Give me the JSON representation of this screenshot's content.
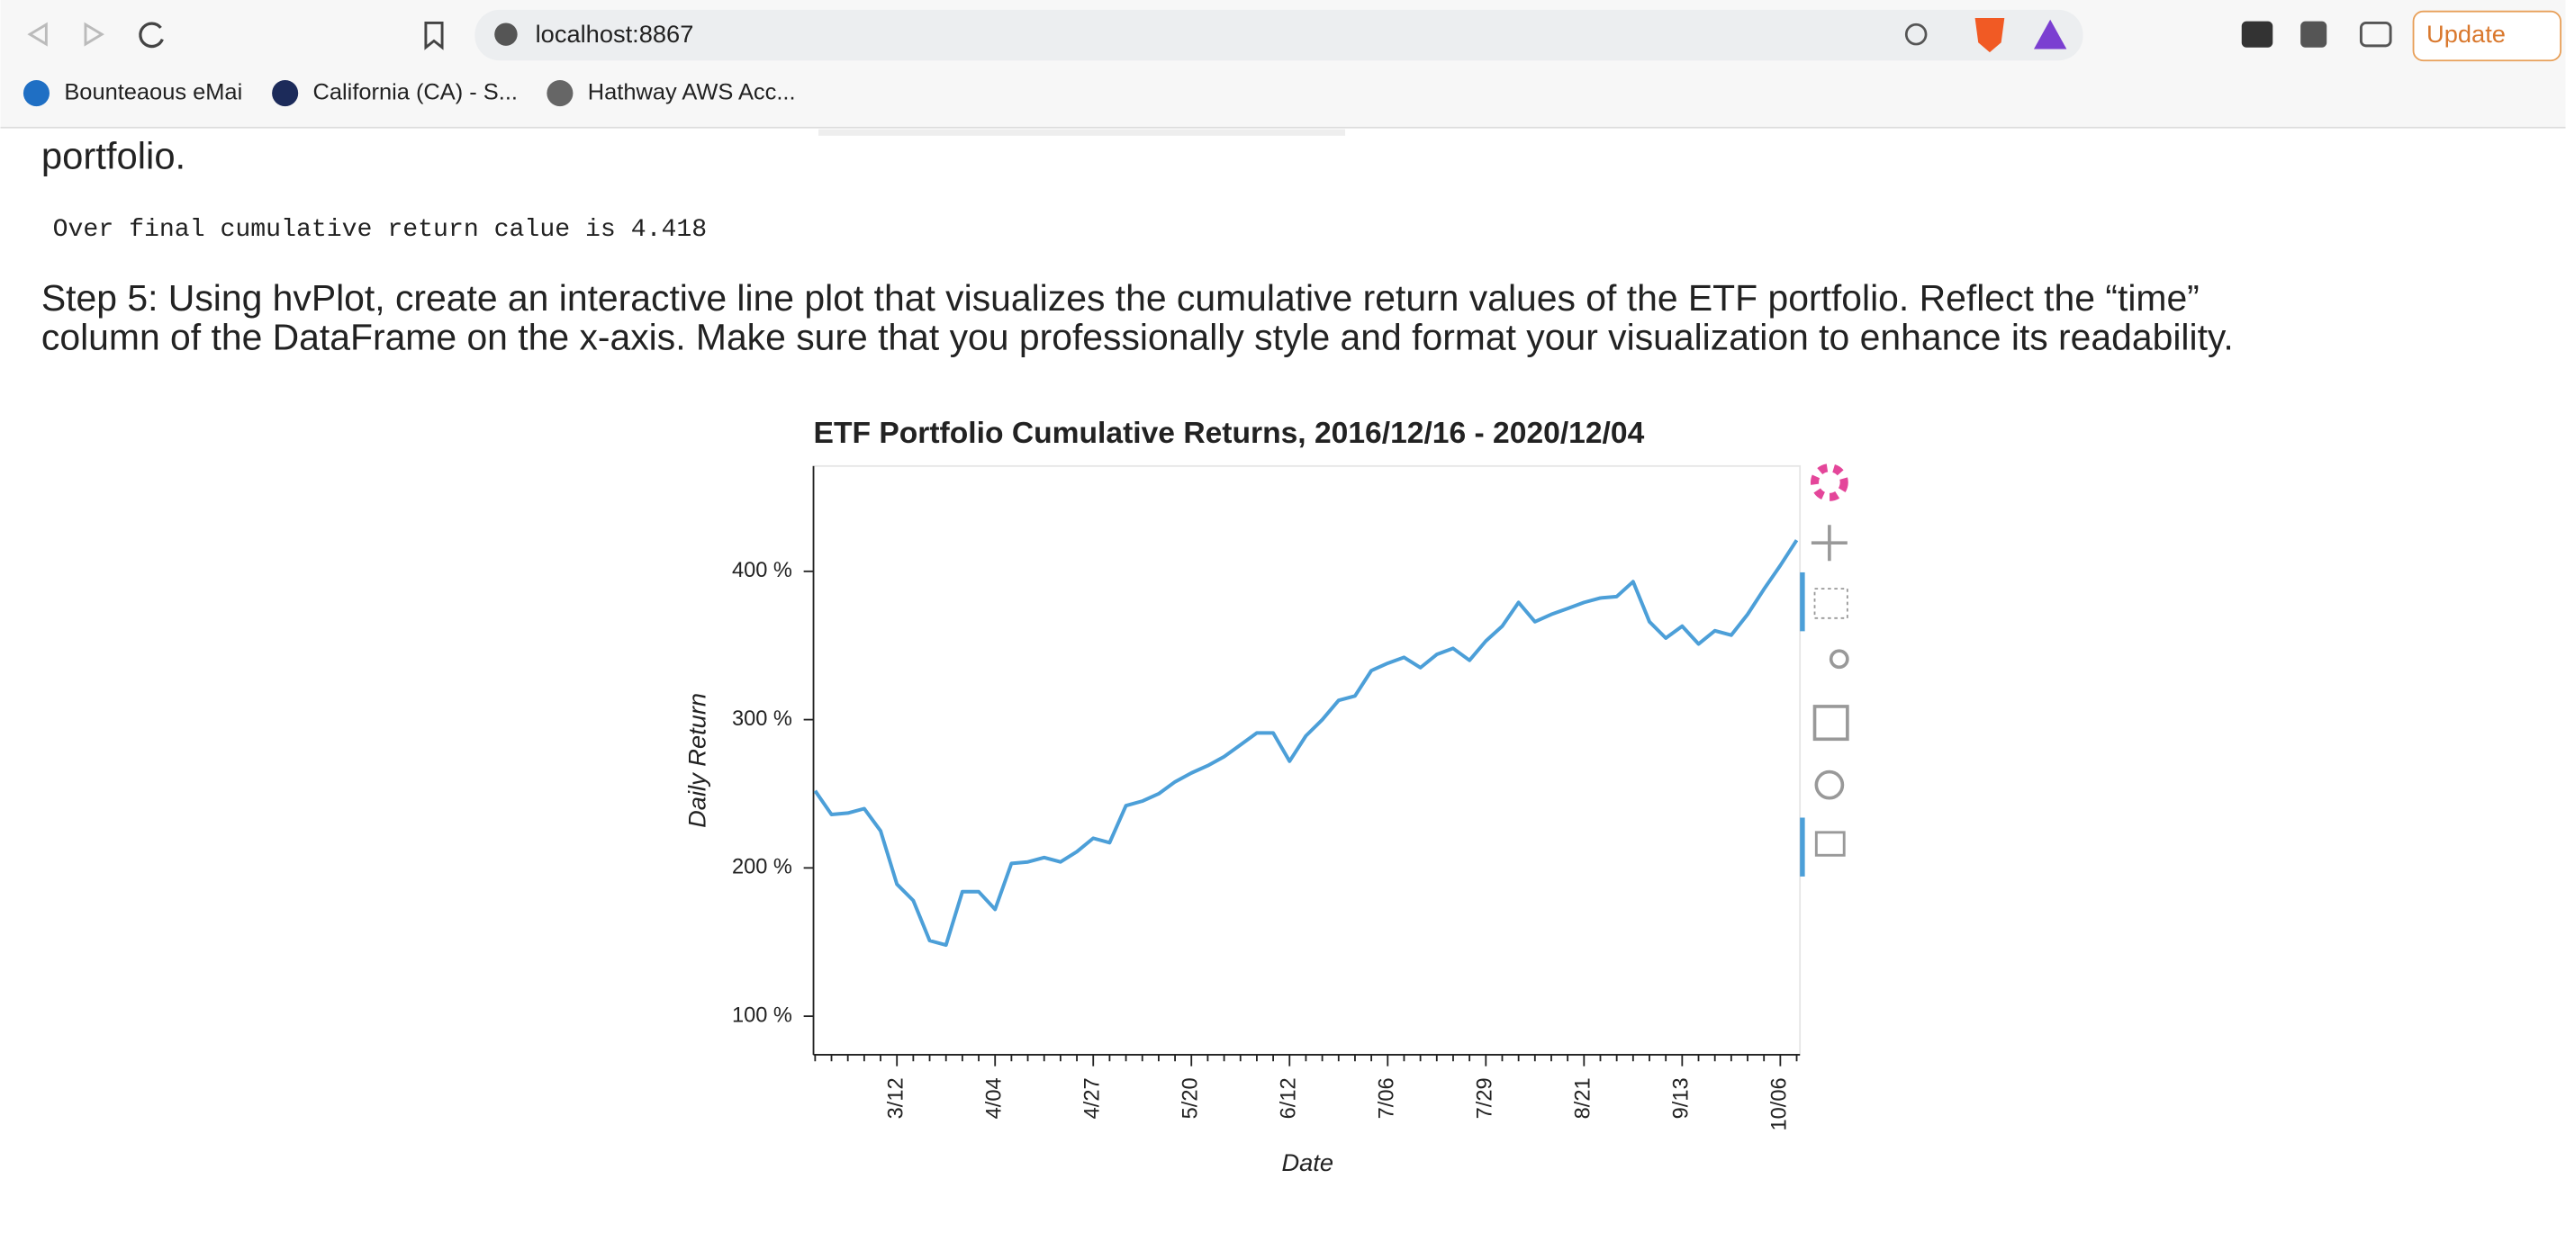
{
  "browser": {
    "url": "localhost:8867",
    "update_button": "Update",
    "bookmarks": [
      "Bounteaous eMai",
      "California (CA) - S...",
      "Hathway AWS Acc..."
    ]
  },
  "document": {
    "text_fragment": "portfolio.",
    "output": "Over final cumulative return calue is 4.418",
    "heading_lines": [
      "Step 5: Using hvPlot, create an interactive line plot that visualizes the cumulative return values of the ETF portfolio. Reflect the “time”",
      "column of the DataFrame on the x-axis. Make sure that you professionally style and format your visualization to enhance its readability."
    ]
  },
  "chart_data": {
    "type": "line",
    "title": "ETF Portfolio Cumulative Returns, 2016/12/16 - 2020/12/04",
    "x_label": "Date",
    "y_label": "Daily Return",
    "color": "#4c9fd8",
    "categories": [
      null,
      null,
      null,
      null,
      null,
      "3/12",
      null,
      null,
      null,
      null,
      null,
      "4/04",
      null,
      null,
      null,
      null,
      null,
      "4/27",
      null,
      null,
      null,
      null,
      null,
      "5/20",
      null,
      null,
      null,
      null,
      null,
      "6/12",
      null,
      null,
      null,
      null,
      null,
      "7/06",
      null,
      null,
      null,
      null,
      null,
      "7/29",
      null,
      null,
      null,
      null,
      null,
      "8/21",
      null,
      null,
      null,
      null,
      null,
      "9/13",
      null,
      null,
      null,
      null,
      null,
      "10/06",
      null
    ],
    "values": [
      252,
      236,
      237,
      240,
      225,
      189,
      178,
      151,
      148,
      184,
      184,
      172,
      203,
      204,
      207,
      204,
      211,
      220,
      217,
      242,
      245,
      250,
      258,
      264,
      269,
      275,
      283,
      291,
      291,
      272,
      289,
      300,
      313,
      316,
      333,
      338,
      342,
      335,
      344,
      348,
      340,
      353,
      363,
      379,
      366,
      371,
      375,
      379,
      382,
      383,
      393,
      366,
      355,
      363,
      351,
      360,
      357,
      371,
      388,
      404,
      421
    ],
    "ylim": [
      74,
      471
    ],
    "yticks": [
      {
        "value": 100,
        "label": "100 %"
      },
      {
        "value": 200,
        "label": "200 %"
      },
      {
        "value": 300,
        "label": "300 %"
      },
      {
        "value": 400,
        "label": "400 %"
      }
    ]
  }
}
